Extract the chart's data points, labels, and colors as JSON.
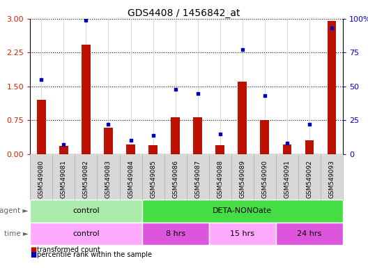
{
  "title": "GDS4408 / 1456842_at",
  "samples": [
    "GSM549080",
    "GSM549081",
    "GSM549082",
    "GSM549083",
    "GSM549084",
    "GSM549085",
    "GSM549086",
    "GSM549087",
    "GSM549088",
    "GSM549089",
    "GSM549090",
    "GSM549091",
    "GSM549092",
    "GSM549093"
  ],
  "transformed_count": [
    1.2,
    0.18,
    2.42,
    0.58,
    0.22,
    0.2,
    0.82,
    0.82,
    0.2,
    1.6,
    0.75,
    0.22,
    0.3,
    2.95
  ],
  "percentile_rank": [
    55,
    7,
    99,
    22,
    10,
    14,
    48,
    45,
    15,
    77,
    43,
    8,
    22,
    93
  ],
  "agent_groups": [
    {
      "label": "control",
      "start": 0,
      "end": 4,
      "color": "#aaeaaa"
    },
    {
      "label": "DETA-NONOate",
      "start": 5,
      "end": 13,
      "color": "#44dd44"
    }
  ],
  "time_groups": [
    {
      "label": "control",
      "start": 0,
      "end": 4,
      "color": "#ffaaff"
    },
    {
      "label": "8 hrs",
      "start": 5,
      "end": 7,
      "color": "#dd55dd"
    },
    {
      "label": "15 hrs",
      "start": 8,
      "end": 10,
      "color": "#ffaaff"
    },
    {
      "label": "24 hrs",
      "start": 11,
      "end": 13,
      "color": "#dd55dd"
    }
  ],
  "ylim_left": [
    0,
    3
  ],
  "ylim_right": [
    0,
    100
  ],
  "yticks_left": [
    0,
    0.75,
    1.5,
    2.25,
    3
  ],
  "yticks_right": [
    0,
    25,
    50,
    75,
    100
  ],
  "bar_color": "#bb1100",
  "dot_color": "#0000bb",
  "label_color_left": "#cc2200",
  "label_color_right": "#0000cc"
}
